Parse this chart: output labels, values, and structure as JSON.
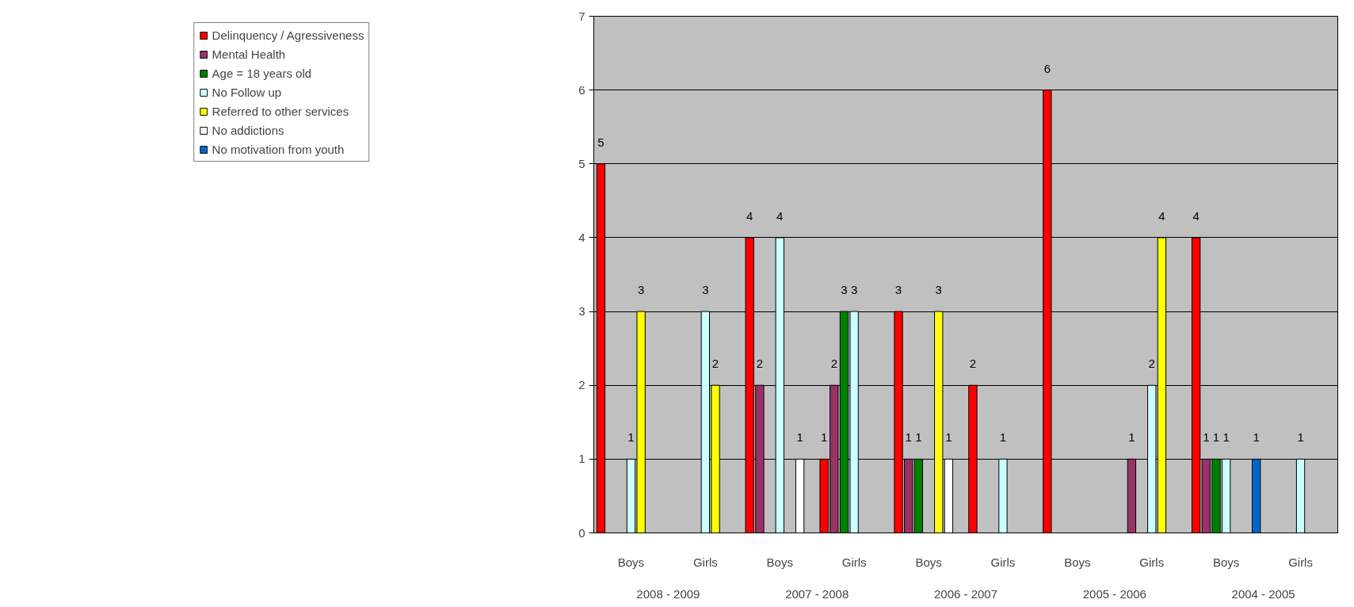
{
  "chart_data": {
    "type": "bar",
    "categories": [
      "Boys",
      "Girls",
      "Boys",
      "Girls",
      "Boys",
      "Girls",
      "Boys",
      "Girls",
      "Boys",
      "Girls"
    ],
    "annotations": [
      "2008 - 2009",
      "2007 - 2008",
      "2006 - 2007",
      "2005 - 2006",
      "2004 - 2005"
    ],
    "series": [
      {
        "name": "Delinquency / Agressiveness",
        "color": "#ff0000",
        "values": [
          5,
          null,
          4,
          1,
          3,
          2,
          6,
          null,
          4,
          null
        ]
      },
      {
        "name": "Mental Health",
        "color": "#993366",
        "values": [
          null,
          null,
          2,
          2,
          1,
          null,
          null,
          1,
          1,
          null
        ]
      },
      {
        "name": "Age = 18 years old",
        "color": "#008000",
        "values": [
          null,
          null,
          null,
          3,
          1,
          null,
          null,
          null,
          1,
          null
        ]
      },
      {
        "name": "No Follow up",
        "color": "#ccffff",
        "values": [
          1,
          3,
          4,
          3,
          null,
          1,
          null,
          2,
          1,
          1
        ]
      },
      {
        "name": "Referred to other services",
        "color": "#ffff00",
        "values": [
          3,
          2,
          null,
          null,
          3,
          null,
          null,
          4,
          null,
          null
        ]
      },
      {
        "name": "No addictions",
        "color": "#ffffff",
        "values": [
          null,
          null,
          1,
          null,
          1,
          null,
          null,
          null,
          null,
          null
        ]
      },
      {
        "name": "No motivation from youth",
        "color": "#0066cc",
        "values": [
          null,
          null,
          null,
          null,
          null,
          null,
          null,
          null,
          1,
          null
        ]
      }
    ],
    "ylim": [
      0,
      7
    ],
    "yticks": [
      0,
      1,
      2,
      3,
      4,
      5,
      6,
      7
    ],
    "grid": "y",
    "legend": "left",
    "data_labels": true
  }
}
